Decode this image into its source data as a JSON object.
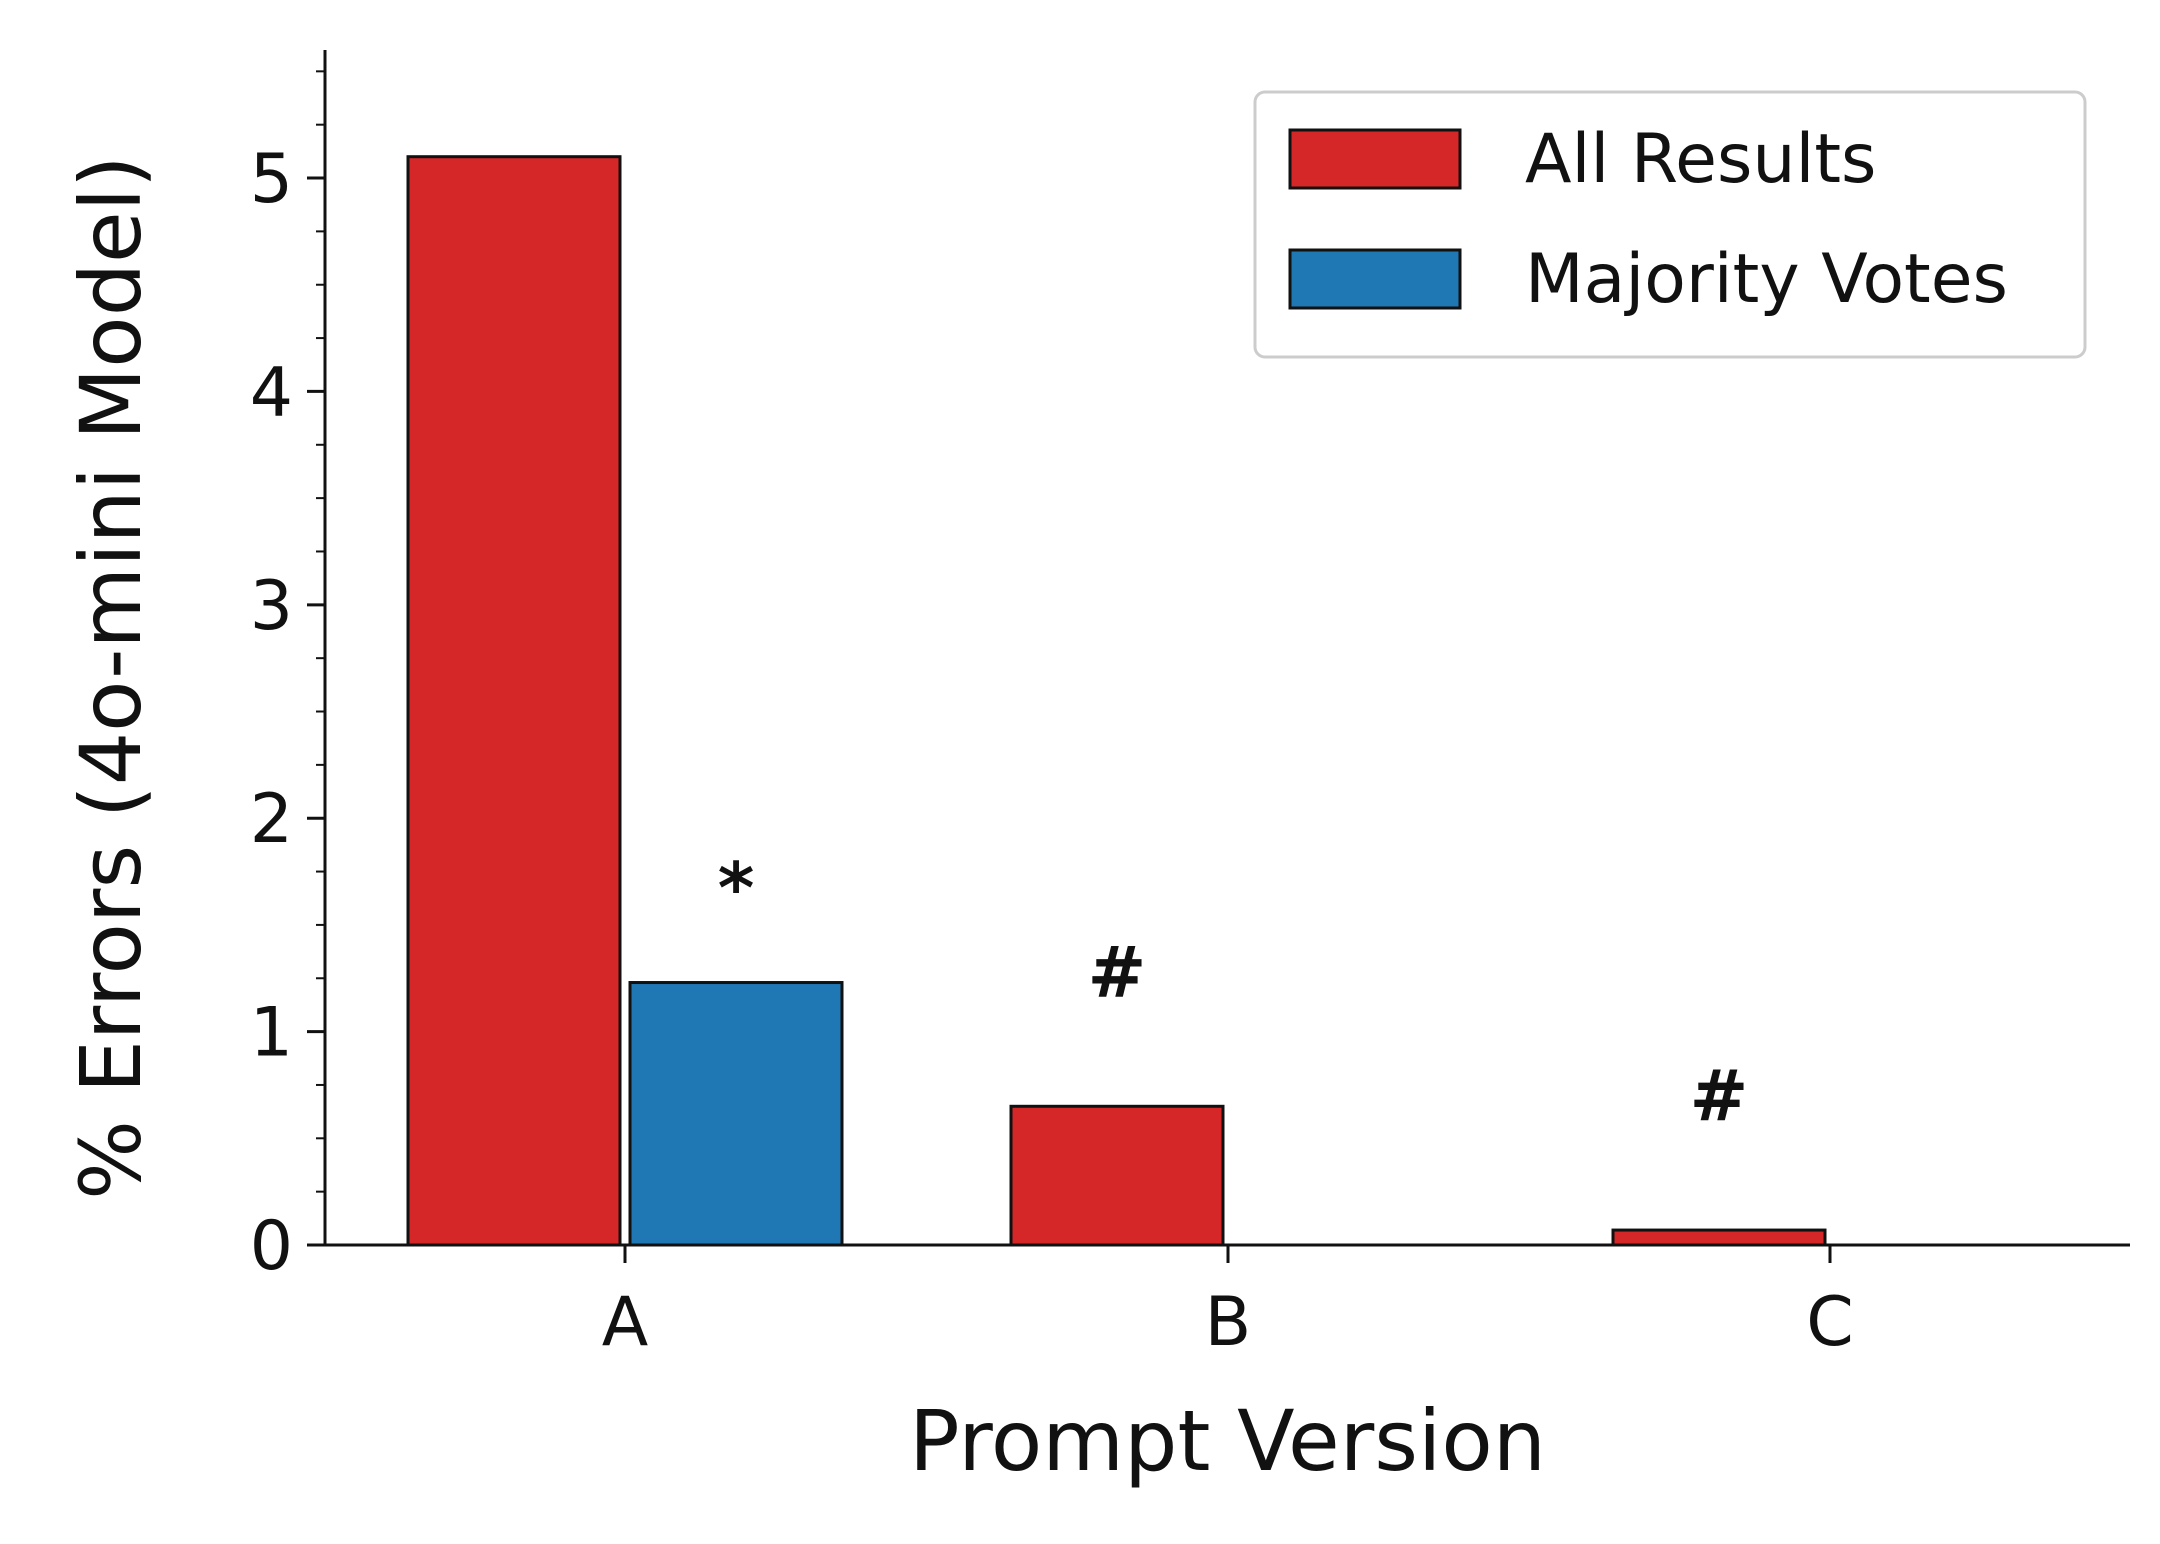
{
  "chart_data": {
    "type": "bar",
    "title": "",
    "xlabel": "Prompt Version",
    "ylabel": "% Errors (4o-mini Model)",
    "categories": [
      "A",
      "B",
      "C"
    ],
    "series": [
      {
        "name": "All Results",
        "color": "#d62728",
        "values": [
          5.1,
          0.65,
          0.07
        ]
      },
      {
        "name": "Majority Votes",
        "color": "#1f77b4",
        "values": [
          1.23,
          0.0,
          0.0
        ]
      }
    ],
    "ylim": [
      0,
      5.6
    ],
    "yticks": [
      0,
      1,
      2,
      3,
      4,
      5
    ],
    "ytick_labels": [
      "0",
      "1",
      "2",
      "3",
      "4",
      "5"
    ],
    "minor_tick_step": 0.25,
    "grid": false,
    "legend_position": "top-right",
    "annotations": [
      {
        "category": "A",
        "series": "Majority Votes",
        "text": "*"
      },
      {
        "category": "B",
        "series": "All Results",
        "text": "#"
      },
      {
        "category": "C",
        "series": "All Results",
        "text": "#"
      }
    ]
  }
}
